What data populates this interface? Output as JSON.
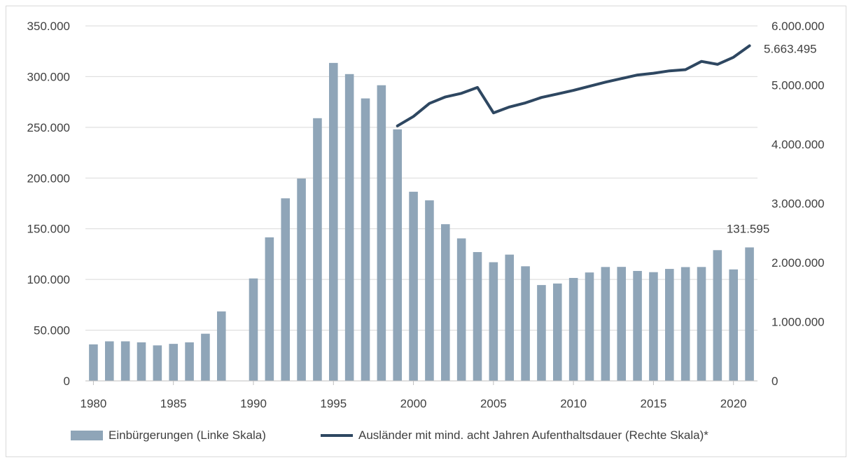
{
  "chart_data": {
    "type": "bar",
    "title": "",
    "xlabel": "",
    "x_ticks": [
      "1980",
      "1985",
      "1990",
      "1995",
      "2000",
      "2005",
      "2010",
      "2015",
      "2020"
    ],
    "left_axis": {
      "ylim": [
        0,
        350000
      ],
      "ticks": [
        "0",
        "50.000",
        "100.000",
        "150.000",
        "200.000",
        "250.000",
        "300.000",
        "350.000"
      ]
    },
    "right_axis": {
      "ylim": [
        0,
        6000000
      ],
      "ticks": [
        "0",
        "1.000.000",
        "2.000.000",
        "3.000.000",
        "4.000.000",
        "5.000.000",
        "6.000.000"
      ]
    },
    "grid": true,
    "legend_position": "bottom",
    "series": [
      {
        "name": "Einbürgerungen (Linke Skala)",
        "type": "bar",
        "axis": "left",
        "color": "#8fa5b8",
        "x": [
          1980,
          1981,
          1982,
          1983,
          1984,
          1985,
          1986,
          1987,
          1988,
          1989,
          1990,
          1991,
          1992,
          1993,
          1994,
          1995,
          1996,
          1997,
          1998,
          1999,
          2000,
          2001,
          2002,
          2003,
          2004,
          2005,
          2006,
          2007,
          2008,
          2009,
          2010,
          2011,
          2012,
          2013,
          2014,
          2015,
          2016,
          2017,
          2018,
          2019,
          2020,
          2021
        ],
        "values": [
          36000,
          39000,
          39000,
          38000,
          35000,
          36500,
          38000,
          46500,
          68500,
          null,
          101000,
          141500,
          180000,
          199500,
          259000,
          313500,
          302500,
          278500,
          291500,
          248000,
          186500,
          178000,
          154500,
          140500,
          127000,
          117000,
          124500,
          113000,
          94500,
          96000,
          101500,
          106900,
          112300,
          112400,
          108400,
          107200,
          110400,
          112200,
          112300,
          128900,
          109900,
          131595
        ]
      },
      {
        "name": "Ausländer mit mind. acht Jahren Aufenthaltsdauer (Rechte Skala)*",
        "type": "line",
        "axis": "right",
        "color": "#2e4761",
        "x": [
          1999,
          2000,
          2001,
          2002,
          2003,
          2004,
          2005,
          2006,
          2007,
          2008,
          2009,
          2010,
          2011,
          2012,
          2013,
          2014,
          2015,
          2016,
          2017,
          2018,
          2019,
          2020,
          2021
        ],
        "values": [
          4310000,
          4470000,
          4690000,
          4800000,
          4860000,
          4960000,
          4530000,
          4630000,
          4700000,
          4790000,
          4850000,
          4910000,
          4980000,
          5050000,
          5110000,
          5170000,
          5200000,
          5240000,
          5260000,
          5400000,
          5350000,
          5470000,
          5663495
        ]
      }
    ],
    "annotations": [
      {
        "text": "131.595",
        "series": 0,
        "x": 2021
      },
      {
        "text": "5.663.495",
        "series": 1,
        "x": 2021
      }
    ]
  }
}
